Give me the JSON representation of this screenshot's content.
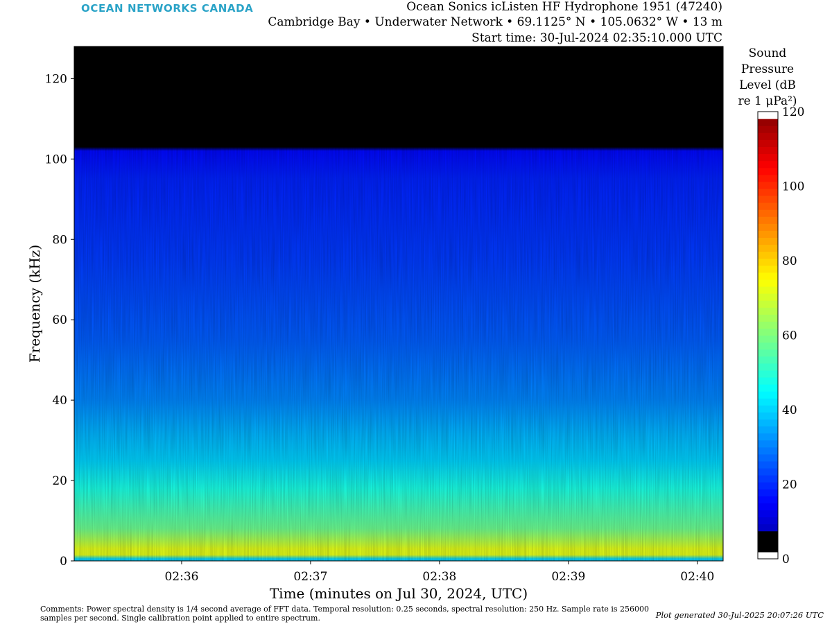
{
  "logo": "OCEAN NETWORKS CANADA",
  "header": {
    "line1": "Ocean Sonics icListen HF Hydrophone 1951 (47240)",
    "line2": "Cambridge Bay • Underwater Network • 69.1125° N • 105.0632° W • 13 m",
    "line3": "Start time: 30-Jul-2024 02:35:10.000 UTC"
  },
  "chart_data": {
    "type": "heatmap",
    "xlabel": "Time (minutes on Jul 30, 2024, UTC)",
    "ylabel": "Frequency (kHz)",
    "x_ticks": [
      "02:36",
      "02:37",
      "02:38",
      "02:39",
      "02:40"
    ],
    "x_range": [
      "02:35:10",
      "02:40:12"
    ],
    "y_ticks": [
      0,
      20,
      40,
      60,
      80,
      100,
      120
    ],
    "ylim": [
      0,
      128
    ],
    "colorbar": {
      "label_lines": [
        "Sound",
        "Pressure",
        "Level (dB",
        "re 1 μPa²)"
      ],
      "ticks": [
        0,
        20,
        40,
        60,
        80,
        100,
        120
      ],
      "range": [
        0,
        120
      ],
      "colormap": "jet"
    },
    "level_profile": [
      {
        "freq_khz": 0.5,
        "db": 40
      },
      {
        "freq_khz": 1.5,
        "db": 72
      },
      {
        "freq_khz": 3,
        "db": 72
      },
      {
        "freq_khz": 5,
        "db": 66
      },
      {
        "freq_khz": 8,
        "db": 58
      },
      {
        "freq_khz": 12,
        "db": 54
      },
      {
        "freq_khz": 18,
        "db": 48
      },
      {
        "freq_khz": 25,
        "db": 40
      },
      {
        "freq_khz": 32,
        "db": 36
      },
      {
        "freq_khz": 40,
        "db": 31
      },
      {
        "freq_khz": 55,
        "db": 26
      },
      {
        "freq_khz": 75,
        "db": 22
      },
      {
        "freq_khz": 95,
        "db": 19
      },
      {
        "freq_khz": 102,
        "db": 16
      },
      {
        "freq_khz": 103,
        "db": 2
      },
      {
        "freq_khz": 128,
        "db": 1
      }
    ]
  },
  "footer": {
    "comments": "Comments: Power spectral density is 1/4 second average of FFT data. Temporal resolution: 0.25 seconds, spectral resolution: 250 Hz. Sample rate is 256000 samples per second. Single calibration point applied to entire spectrum.",
    "generated": "Plot generated 30-Jul-2025 20:07:26 UTC"
  }
}
